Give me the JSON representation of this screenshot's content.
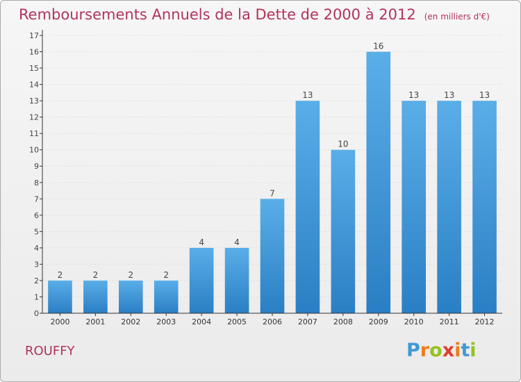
{
  "header": {
    "title": "Remboursements Annuels de la Dette de 2000 à 2012",
    "unit": "(en milliers d'€)"
  },
  "footer": {
    "commune": "ROUFFY",
    "logo_text": "Proxiti"
  },
  "colors": {
    "title": "#b1345b",
    "bar_top": "#5aaee8",
    "bar_bottom": "#2a7fc4",
    "axis": "#333333",
    "grid": "#d0d0d0"
  },
  "chart_data": {
    "type": "bar",
    "title": "Remboursements Annuels de la Dette de 2000 à 2012",
    "xlabel": "",
    "ylabel": "",
    "categories": [
      "2000",
      "2001",
      "2002",
      "2003",
      "2004",
      "2005",
      "2006",
      "2007",
      "2008",
      "2009",
      "2010",
      "2011",
      "2012"
    ],
    "values": [
      2,
      2,
      2,
      2,
      4,
      4,
      7,
      13,
      10,
      16,
      13,
      13,
      13
    ],
    "data_labels": [
      "2",
      "2",
      "2",
      "2",
      "4",
      "4",
      "7",
      "13",
      "10",
      "16",
      "13",
      "13",
      "13"
    ],
    "ylim": [
      0,
      17
    ],
    "yticks": [
      "0",
      "1",
      "2",
      "3",
      "4",
      "5",
      "6",
      "7",
      "8",
      "9",
      "10",
      "11",
      "12",
      "13",
      "14",
      "15",
      "16",
      "17"
    ],
    "grid": true
  }
}
